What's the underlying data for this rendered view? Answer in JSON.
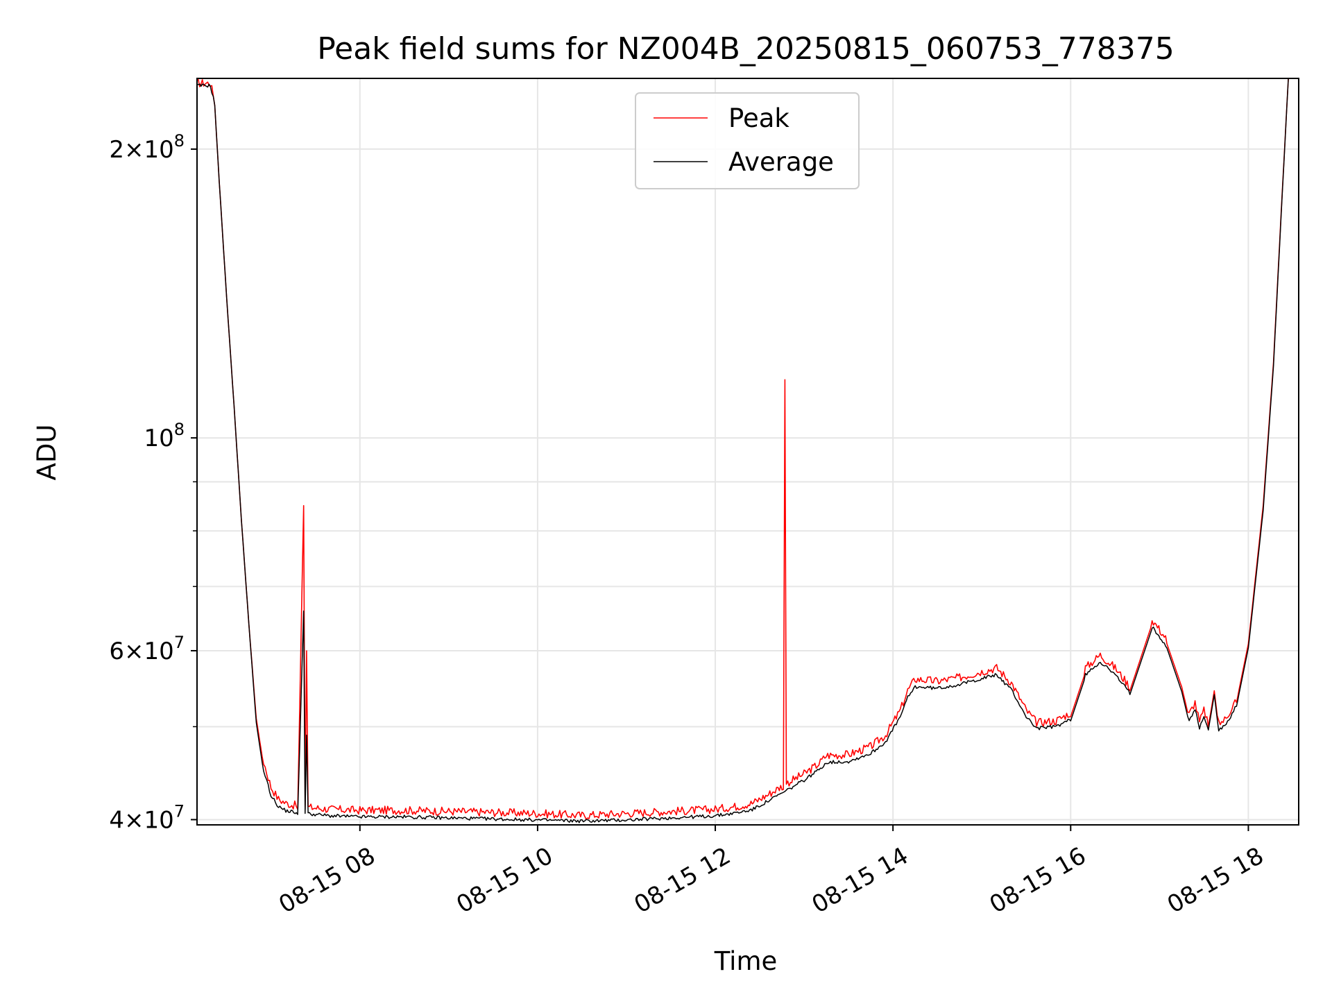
{
  "chart_data": {
    "type": "line",
    "title": "Peak field sums for NZ004B_20250815_060753_778375",
    "xlabel": "Time",
    "ylabel": "ADU",
    "y_scale": "log",
    "ylim": [
      39500000,
      237000000
    ],
    "xlim": [
      "2025-08-15 06:10",
      "2025-08-15 18:34"
    ],
    "grid": true,
    "legend_position": "top-center",
    "x_ticks": [
      "08-15 08",
      "08-15 10",
      "08-15 12",
      "08-15 14",
      "08-15 16",
      "08-15 18"
    ],
    "x_tick_values": [
      "2025-08-15 08:00",
      "2025-08-15 10:00",
      "2025-08-15 12:00",
      "2025-08-15 14:00",
      "2025-08-15 16:00",
      "2025-08-15 18:00"
    ],
    "y_ticks": [
      {
        "value": 40000000,
        "mant": "4",
        "exp": "7"
      },
      {
        "value": 60000000,
        "mant": "6",
        "exp": "7"
      },
      {
        "value": 100000000,
        "mant": "",
        "exp": "8"
      },
      {
        "value": 200000000,
        "mant": "2",
        "exp": "8"
      }
    ],
    "series": [
      {
        "name": "Peak",
        "color": "#ff0000",
        "points": [
          [
            "2025-08-15 06:10",
            232000000
          ],
          [
            "2025-08-15 06:19",
            232000000
          ],
          [
            "2025-08-15 06:22",
            222000000
          ],
          [
            "2025-08-15 06:25",
            185000000
          ],
          [
            "2025-08-15 06:30",
            140000000
          ],
          [
            "2025-08-15 06:35",
            108000000
          ],
          [
            "2025-08-15 06:40",
            82000000
          ],
          [
            "2025-08-15 06:45",
            64000000
          ],
          [
            "2025-08-15 06:50",
            51000000
          ],
          [
            "2025-08-15 06:55",
            45500000
          ],
          [
            "2025-08-15 07:00",
            42800000
          ],
          [
            "2025-08-15 07:05",
            41600000
          ],
          [
            "2025-08-15 07:10",
            41200000
          ],
          [
            "2025-08-15 07:15",
            41000000
          ],
          [
            "2025-08-15 07:18",
            41000000
          ],
          [
            "2025-08-15 07:22",
            85000000
          ],
          [
            "2025-08-15 07:23",
            41000000
          ],
          [
            "2025-08-15 07:24",
            60000000
          ],
          [
            "2025-08-15 07:25",
            40800000
          ],
          [
            "2025-08-15 07:40",
            40600000
          ],
          [
            "2025-08-15 08:00",
            40500000
          ],
          [
            "2025-08-15 08:30",
            40500000
          ],
          [
            "2025-08-15 09:00",
            40400000
          ],
          [
            "2025-08-15 09:30",
            40300000
          ],
          [
            "2025-08-15 10:00",
            40200000
          ],
          [
            "2025-08-15 10:30",
            40000000
          ],
          [
            "2025-08-15 11:00",
            40200000
          ],
          [
            "2025-08-15 11:30",
            40400000
          ],
          [
            "2025-08-15 12:00",
            40600000
          ],
          [
            "2025-08-15 12:15",
            40900000
          ],
          [
            "2025-08-15 12:25",
            41200000
          ],
          [
            "2025-08-15 12:35",
            42000000
          ],
          [
            "2025-08-15 12:46",
            43000000
          ],
          [
            "2025-08-15 12:47",
            115000000
          ],
          [
            "2025-08-15 12:48",
            43200000
          ],
          [
            "2025-08-15 13:00",
            44200000
          ],
          [
            "2025-08-15 13:10",
            45300000
          ],
          [
            "2025-08-15 13:15",
            46200000
          ],
          [
            "2025-08-15 13:30",
            46300000
          ],
          [
            "2025-08-15 13:45",
            47200000
          ],
          [
            "2025-08-15 13:55",
            48500000
          ],
          [
            "2025-08-15 14:05",
            51500000
          ],
          [
            "2025-08-15 14:10",
            54000000
          ],
          [
            "2025-08-15 14:15",
            55500000
          ],
          [
            "2025-08-15 14:30",
            55200000
          ],
          [
            "2025-08-15 14:45",
            55700000
          ],
          [
            "2025-08-15 15:00",
            56500000
          ],
          [
            "2025-08-15 15:10",
            57000000
          ],
          [
            "2025-08-15 15:20",
            55000000
          ],
          [
            "2025-08-15 15:30",
            51500000
          ],
          [
            "2025-08-15 15:37",
            50000000
          ],
          [
            "2025-08-15 15:50",
            50200000
          ],
          [
            "2025-08-15 16:00",
            51200000
          ],
          [
            "2025-08-15 16:10",
            57000000
          ],
          [
            "2025-08-15 16:20",
            58800000
          ],
          [
            "2025-08-15 16:30",
            57000000
          ],
          [
            "2025-08-15 16:40",
            54500000
          ],
          [
            "2025-08-15 16:55",
            64000000
          ],
          [
            "2025-08-15 17:05",
            61000000
          ],
          [
            "2025-08-15 17:15",
            55000000
          ],
          [
            "2025-08-15 17:20",
            51000000
          ],
          [
            "2025-08-15 17:24",
            52500000
          ],
          [
            "2025-08-15 17:27",
            50000000
          ],
          [
            "2025-08-15 17:30",
            51500000
          ],
          [
            "2025-08-15 17:33",
            50000000
          ],
          [
            "2025-08-15 17:37",
            54500000
          ],
          [
            "2025-08-15 17:40",
            49800000
          ],
          [
            "2025-08-15 17:45",
            50500000
          ],
          [
            "2025-08-15 17:52",
            53000000
          ],
          [
            "2025-08-15 18:00",
            61000000
          ],
          [
            "2025-08-15 18:10",
            85000000
          ],
          [
            "2025-08-15 18:17",
            120000000
          ],
          [
            "2025-08-15 18:22",
            170000000
          ],
          [
            "2025-08-15 18:27",
            237000000
          ]
        ]
      },
      {
        "name": "Average",
        "color": "#000000",
        "points": [
          [
            "2025-08-15 06:10",
            232000000
          ],
          [
            "2025-08-15 06:19",
            232000000
          ],
          [
            "2025-08-15 06:22",
            222000000
          ],
          [
            "2025-08-15 06:25",
            185000000
          ],
          [
            "2025-08-15 06:30",
            140000000
          ],
          [
            "2025-08-15 06:35",
            108000000
          ],
          [
            "2025-08-15 06:40",
            82000000
          ],
          [
            "2025-08-15 06:45",
            64000000
          ],
          [
            "2025-08-15 06:50",
            50500000
          ],
          [
            "2025-08-15 06:55",
            44800000
          ],
          [
            "2025-08-15 07:00",
            42200000
          ],
          [
            "2025-08-15 07:05",
            41100000
          ],
          [
            "2025-08-15 07:10",
            40700000
          ],
          [
            "2025-08-15 07:18",
            40500000
          ],
          [
            "2025-08-15 07:22",
            66000000
          ],
          [
            "2025-08-15 07:23",
            40600000
          ],
          [
            "2025-08-15 07:24",
            49000000
          ],
          [
            "2025-08-15 07:25",
            40400000
          ],
          [
            "2025-08-15 07:40",
            40200000
          ],
          [
            "2025-08-15 08:00",
            40100000
          ],
          [
            "2025-08-15 08:30",
            40100000
          ],
          [
            "2025-08-15 09:00",
            40000000
          ],
          [
            "2025-08-15 09:30",
            39900000
          ],
          [
            "2025-08-15 10:00",
            39800000
          ],
          [
            "2025-08-15 10:30",
            39700000
          ],
          [
            "2025-08-15 11:00",
            39800000
          ],
          [
            "2025-08-15 11:30",
            40000000
          ],
          [
            "2025-08-15 12:00",
            40200000
          ],
          [
            "2025-08-15 12:15",
            40500000
          ],
          [
            "2025-08-15 12:25",
            40800000
          ],
          [
            "2025-08-15 12:35",
            41600000
          ],
          [
            "2025-08-15 12:47",
            42600000
          ],
          [
            "2025-08-15 13:00",
            43800000
          ],
          [
            "2025-08-15 13:10",
            44900000
          ],
          [
            "2025-08-15 13:15",
            45700000
          ],
          [
            "2025-08-15 13:30",
            45800000
          ],
          [
            "2025-08-15 13:45",
            46700000
          ],
          [
            "2025-08-15 13:55",
            48000000
          ],
          [
            "2025-08-15 14:05",
            51000000
          ],
          [
            "2025-08-15 14:10",
            53400000
          ],
          [
            "2025-08-15 14:15",
            54800000
          ],
          [
            "2025-08-15 14:30",
            54600000
          ],
          [
            "2025-08-15 14:45",
            55100000
          ],
          [
            "2025-08-15 15:00",
            55900000
          ],
          [
            "2025-08-15 15:10",
            56400000
          ],
          [
            "2025-08-15 15:20",
            54400000
          ],
          [
            "2025-08-15 15:30",
            51000000
          ],
          [
            "2025-08-15 15:37",
            49600000
          ],
          [
            "2025-08-15 15:50",
            49800000
          ],
          [
            "2025-08-15 16:00",
            50700000
          ],
          [
            "2025-08-15 16:10",
            56400000
          ],
          [
            "2025-08-15 16:20",
            58200000
          ],
          [
            "2025-08-15 16:30",
            56400000
          ],
          [
            "2025-08-15 16:40",
            54000000
          ],
          [
            "2025-08-15 16:55",
            63300000
          ],
          [
            "2025-08-15 17:05",
            60400000
          ],
          [
            "2025-08-15 17:15",
            54400000
          ],
          [
            "2025-08-15 17:20",
            50500000
          ],
          [
            "2025-08-15 17:24",
            52000000
          ],
          [
            "2025-08-15 17:27",
            49600000
          ],
          [
            "2025-08-15 17:30",
            51000000
          ],
          [
            "2025-08-15 17:33",
            49600000
          ],
          [
            "2025-08-15 17:37",
            54000000
          ],
          [
            "2025-08-15 17:40",
            49400000
          ],
          [
            "2025-08-15 17:45",
            50000000
          ],
          [
            "2025-08-15 17:52",
            52500000
          ],
          [
            "2025-08-15 18:00",
            60400000
          ],
          [
            "2025-08-15 18:10",
            84000000
          ],
          [
            "2025-08-15 18:17",
            119000000
          ],
          [
            "2025-08-15 18:22",
            169000000
          ],
          [
            "2025-08-15 18:27",
            237000000
          ]
        ]
      }
    ]
  }
}
